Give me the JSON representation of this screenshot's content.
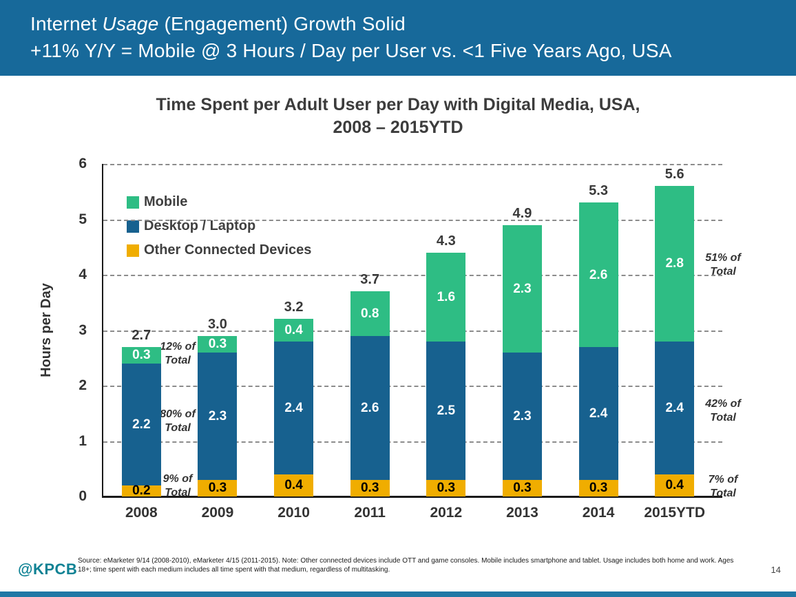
{
  "header": {
    "line1_pre": "Internet ",
    "line1_italic": "Usage",
    "line1_post": " (Engagement) Growth Solid",
    "line2": "+11% Y/Y = Mobile @ 3 Hours / Day per User vs. <1  Five Years Ago, USA"
  },
  "chart_data": {
    "type": "bar",
    "stacked": true,
    "title_line1": "Time Spent per Adult User per Day with Digital Media, USA,",
    "title_line2": "2008 – 2015YTD",
    "ylabel": "Hours per Day",
    "ylim": [
      0,
      6
    ],
    "yticks": [
      0,
      1,
      2,
      3,
      4,
      5,
      6
    ],
    "grid": "dashed horizontal",
    "legend_position": "upper left inside plot",
    "categories": [
      "2008",
      "2009",
      "2010",
      "2011",
      "2012",
      "2013",
      "2014",
      "2015YTD"
    ],
    "series": [
      {
        "name": "Other Connected Devices",
        "color": "#F0AD00",
        "label_color": "#000000",
        "values": [
          0.2,
          0.3,
          0.4,
          0.3,
          0.3,
          0.3,
          0.3,
          0.4
        ]
      },
      {
        "name": "Desktop / Laptop",
        "color": "#17618F",
        "label_color": "#FFFFFF",
        "values": [
          2.2,
          2.3,
          2.4,
          2.6,
          2.5,
          2.3,
          2.4,
          2.4
        ]
      },
      {
        "name": "Mobile",
        "color": "#2EBD84",
        "label_color": "#FFFFFF",
        "values": [
          0.3,
          0.3,
          0.4,
          0.8,
          1.6,
          2.3,
          2.6,
          2.8
        ]
      }
    ],
    "totals": [
      "2.7",
      "3.0",
      "3.2",
      "3.7",
      "4.3",
      "4.9",
      "5.3",
      "5.6"
    ],
    "legend_order": [
      "Mobile",
      "Desktop / Laptop",
      "Other Connected Devices"
    ],
    "annotations_left": [
      "12% of\nTotal",
      "80% of\nTotal",
      "9% of\nTotal"
    ],
    "annotations_right": [
      "51% of\nTotal",
      "42% of\nTotal",
      "7% of\nTotal"
    ]
  },
  "footer": {
    "logo": "@KPCB",
    "source": "Source: eMarketer 9/14 (2008-2010), eMarketer 4/15 (2011-2015). Note: Other connected devices include OTT and game consoles. Mobile includes smartphone and tablet. Usage includes both home and work. Ages 18+; time spent with each medium includes all time spent with that medium, regardless of multitasking.",
    "page_number": "14"
  }
}
